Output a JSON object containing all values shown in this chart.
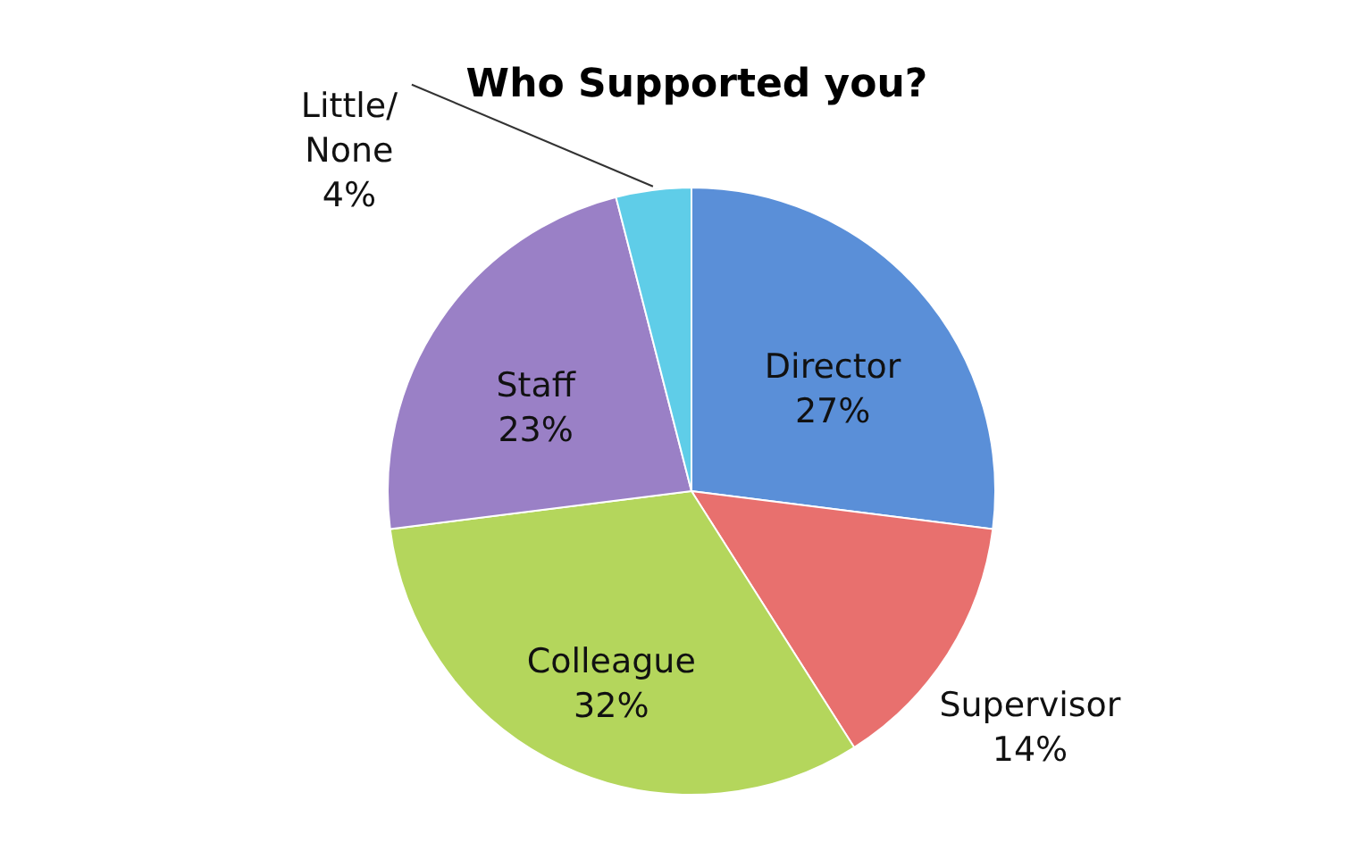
{
  "chart_data": {
    "type": "pie",
    "title": "Who Supported you?",
    "categories": [
      "Director",
      "Supervisor",
      "Colleague",
      "Staff",
      "Little/ None"
    ],
    "values": [
      27,
      14,
      32,
      23,
      4
    ],
    "value_labels": [
      "27%",
      "14%",
      "32%",
      "23%",
      "4%"
    ],
    "colors": [
      "#5a8fd8",
      "#e8706e",
      "#b4d65c",
      "#9a80c6",
      "#5fcde8"
    ]
  }
}
